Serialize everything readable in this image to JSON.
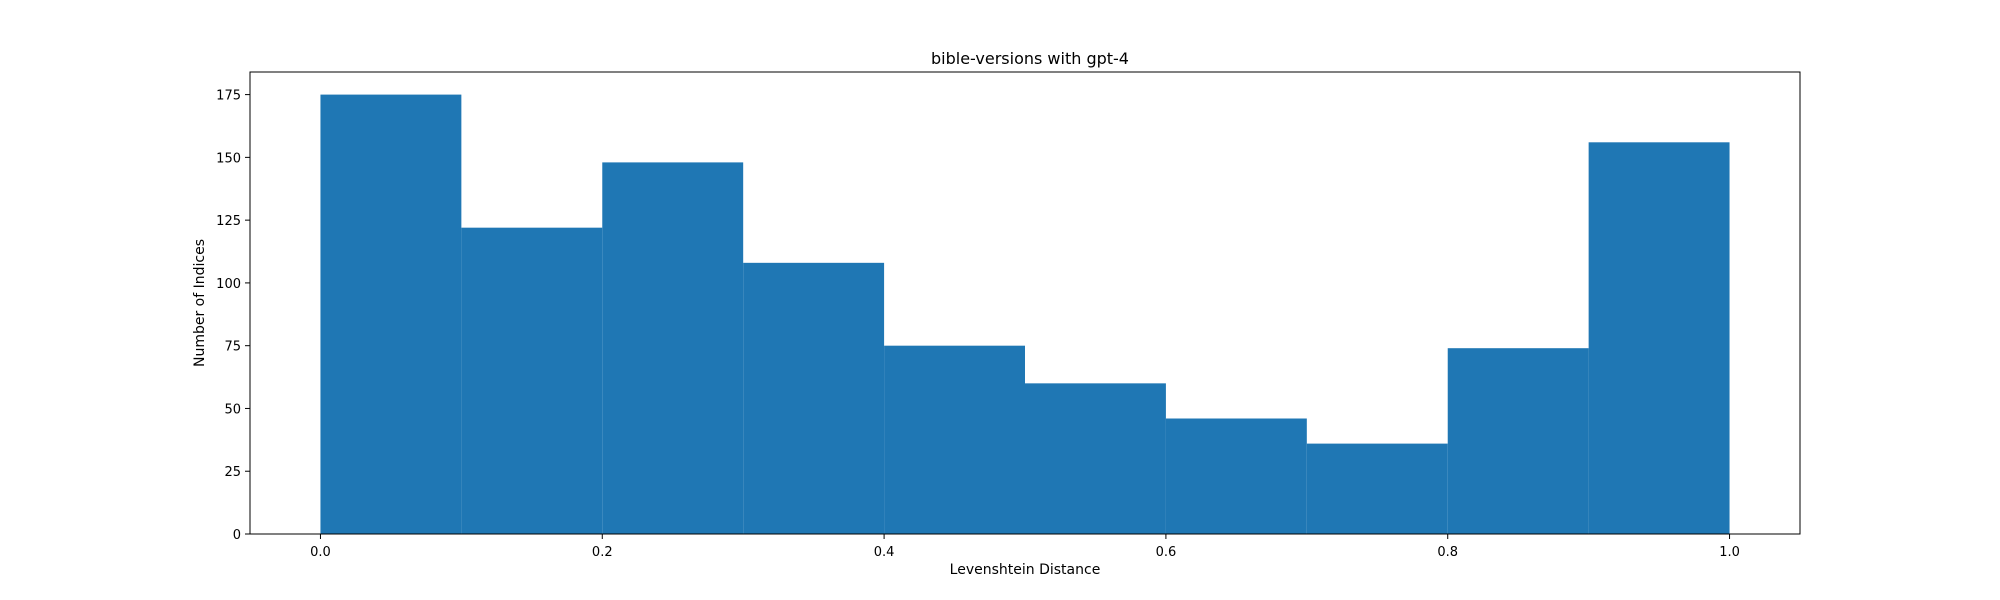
{
  "chart_data": {
    "type": "bar",
    "title": "bible-versions with gpt-4",
    "xlabel": "Levenshtein Distance",
    "ylabel": "Number of Indices",
    "bins": [
      {
        "x0": 0.0,
        "x1": 0.1,
        "count": 175
      },
      {
        "x0": 0.1,
        "x1": 0.2,
        "count": 122
      },
      {
        "x0": 0.2,
        "x1": 0.3,
        "count": 148
      },
      {
        "x0": 0.3,
        "x1": 0.4,
        "count": 108
      },
      {
        "x0": 0.4,
        "x1": 0.5,
        "count": 75
      },
      {
        "x0": 0.5,
        "x1": 0.6,
        "count": 60
      },
      {
        "x0": 0.6,
        "x1": 0.7,
        "count": 46
      },
      {
        "x0": 0.7,
        "x1": 0.8,
        "count": 36
      },
      {
        "x0": 0.8,
        "x1": 0.9,
        "count": 74
      },
      {
        "x0": 0.9,
        "x1": 1.0,
        "count": 156
      }
    ],
    "xlim": [
      -0.05,
      1.05
    ],
    "ylim": [
      0,
      184
    ],
    "xticks": [
      0.0,
      0.2,
      0.4,
      0.6,
      0.8,
      1.0
    ],
    "xtick_labels": [
      "0.0",
      "0.2",
      "0.4",
      "0.6",
      "0.8",
      "1.0"
    ],
    "yticks": [
      0,
      25,
      50,
      75,
      100,
      125,
      150,
      175
    ],
    "ytick_labels": [
      "0",
      "25",
      "50",
      "75",
      "100",
      "125",
      "150",
      "175"
    ],
    "grid": false,
    "bar_color": "#1f77b4"
  }
}
